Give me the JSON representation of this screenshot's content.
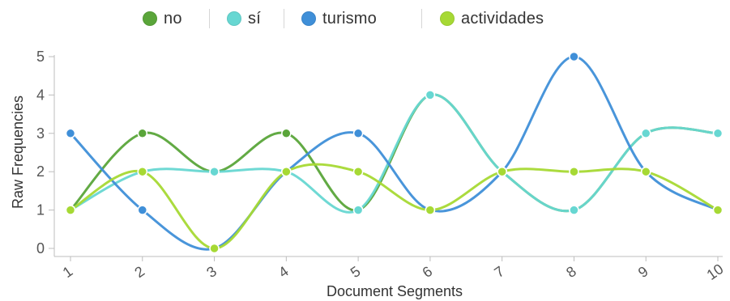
{
  "chart_data": {
    "type": "line",
    "xlabel": "Document Segments",
    "ylabel": "Raw Frequencies",
    "categories": [
      "1",
      "2",
      "3",
      "4",
      "5",
      "6",
      "7",
      "8",
      "9",
      "10"
    ],
    "ylim": [
      0,
      5
    ],
    "yticks": [
      "0",
      "1",
      "2",
      "3",
      "4",
      "5"
    ],
    "grid": false,
    "legend_position": "top-center",
    "series": [
      {
        "name": "no",
        "color": "#5aa53a",
        "values": [
          1,
          3,
          2,
          3,
          1,
          4,
          2,
          1,
          3,
          3
        ]
      },
      {
        "name": "sí",
        "color": "#67d7d2",
        "values": [
          1,
          2,
          2,
          2,
          1,
          4,
          2,
          1,
          3,
          3
        ]
      },
      {
        "name": "turismo",
        "color": "#3f8fd8",
        "values": [
          3,
          1,
          0,
          2,
          3,
          1,
          2,
          5,
          2,
          1
        ]
      },
      {
        "name": "actividades",
        "color": "#a6d934",
        "values": [
          1,
          2,
          0,
          2,
          2,
          1,
          2,
          2,
          2,
          1
        ]
      }
    ]
  }
}
